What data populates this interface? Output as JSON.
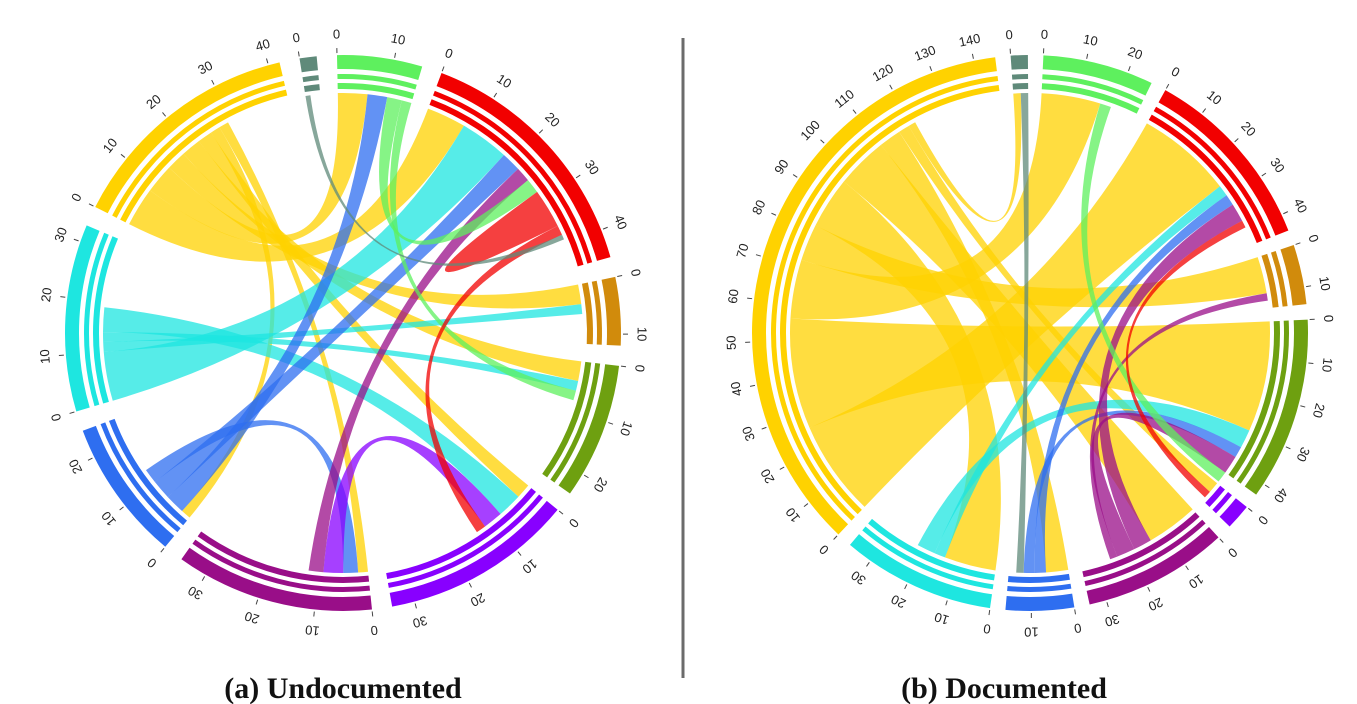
{
  "figure": {
    "panels": [
      {
        "id": "a",
        "caption": "(a) Undocumented",
        "sectors": [
          {
            "name": "gray",
            "color": "#5f8a7a",
            "max": 3,
            "ticks": [
              0
            ]
          },
          {
            "name": "green",
            "color": "#5ef05e",
            "max": 15,
            "ticks": [
              0,
              10
            ]
          },
          {
            "name": "red",
            "color": "#f20000",
            "max": 45,
            "ticks": [
              0,
              10,
              20,
              30,
              40
            ]
          },
          {
            "name": "orange",
            "color": "#d18b0c",
            "max": 12,
            "ticks": [
              0,
              10
            ]
          },
          {
            "name": "olive",
            "color": "#6ea010",
            "max": 24,
            "ticks": [
              0,
              10,
              20
            ]
          },
          {
            "name": "violet",
            "color": "#8800ff",
            "max": 34,
            "ticks": [
              0,
              10,
              20,
              30
            ]
          },
          {
            "name": "purple",
            "color": "#990e88",
            "max": 35,
            "ticks": [
              0,
              10,
              20,
              30
            ]
          },
          {
            "name": "blue",
            "color": "#2e6ef0",
            "max": 25,
            "ticks": [
              0,
              10,
              20
            ]
          },
          {
            "name": "cyan",
            "color": "#1ee6e0",
            "max": 33,
            "ticks": [
              0,
              10,
              20,
              30
            ]
          },
          {
            "name": "yellow",
            "color": "#ffd200",
            "max": 42,
            "ticks": [
              0,
              10,
              20,
              30,
              40
            ]
          }
        ],
        "chords": [
          [
            "yellow",
            "red",
            8
          ],
          [
            "yellow",
            "green",
            6
          ],
          [
            "yellow",
            "orange",
            4
          ],
          [
            "yellow",
            "olive",
            4
          ],
          [
            "yellow",
            "violet",
            3
          ],
          [
            "yellow",
            "blue",
            2
          ],
          [
            "yellow",
            "purple",
            2
          ],
          [
            "cyan",
            "red",
            10
          ],
          [
            "cyan",
            "orange",
            2
          ],
          [
            "cyan",
            "olive",
            2
          ],
          [
            "cyan",
            "violet",
            5
          ],
          [
            "blue",
            "green",
            4
          ],
          [
            "blue",
            "red",
            4
          ],
          [
            "blue",
            "purple",
            3
          ],
          [
            "violet",
            "purple",
            4
          ],
          [
            "purple",
            "red",
            3
          ],
          [
            "green",
            "red",
            3
          ],
          [
            "green",
            "olive",
            2
          ],
          [
            "red",
            "red",
            4
          ],
          [
            "red",
            "violet",
            2
          ],
          [
            "gray",
            "red",
            1
          ]
        ]
      },
      {
        "id": "b",
        "caption": "(b) Documented",
        "sectors": [
          {
            "name": "gray",
            "color": "#5f8a7a",
            "max": 4,
            "ticks": [
              0
            ]
          },
          {
            "name": "green",
            "color": "#5ef05e",
            "max": 26,
            "ticks": [
              0,
              10,
              20
            ]
          },
          {
            "name": "red",
            "color": "#f20000",
            "max": 44,
            "ticks": [
              0,
              10,
              20,
              30,
              40
            ]
          },
          {
            "name": "orange",
            "color": "#d18b0c",
            "max": 14,
            "ticks": [
              0,
              10
            ]
          },
          {
            "name": "olive",
            "color": "#6ea010",
            "max": 43,
            "ticks": [
              0,
              10,
              20,
              30,
              40
            ]
          },
          {
            "name": "violet",
            "color": "#8800ff",
            "max": 6,
            "ticks": [
              0
            ]
          },
          {
            "name": "purple",
            "color": "#990e88",
            "max": 34,
            "ticks": [
              0,
              10,
              20,
              30
            ]
          },
          {
            "name": "blue",
            "color": "#2e6ef0",
            "max": 16,
            "ticks": [
              0,
              10
            ]
          },
          {
            "name": "cyan",
            "color": "#1ee6e0",
            "max": 36,
            "ticks": [
              0,
              10,
              20,
              30
            ]
          },
          {
            "name": "yellow",
            "color": "#ffd200",
            "max": 145,
            "ticks": [
              0,
              10,
              20,
              30,
              40,
              50,
              60,
              70,
              80,
              90,
              100,
              110,
              120,
              130,
              140
            ]
          }
        ],
        "chords": [
          [
            "yellow",
            "red",
            26
          ],
          [
            "yellow",
            "olive",
            30
          ],
          [
            "yellow",
            "green",
            16
          ],
          [
            "yellow",
            "orange",
            10
          ],
          [
            "yellow",
            "cyan",
            14
          ],
          [
            "yellow",
            "purple",
            14
          ],
          [
            "yellow",
            "blue",
            6
          ],
          [
            "yellow",
            "violet",
            3
          ],
          [
            "yellow",
            "gray",
            2
          ],
          [
            "cyan",
            "red",
            3
          ],
          [
            "cyan",
            "olive",
            5
          ],
          [
            "blue",
            "red",
            3
          ],
          [
            "blue",
            "olive",
            3
          ],
          [
            "purple",
            "red",
            5
          ],
          [
            "purple",
            "olive",
            5
          ],
          [
            "purple",
            "orange",
            2
          ],
          [
            "green",
            "olive",
            3
          ],
          [
            "red",
            "violet",
            2
          ],
          [
            "gray",
            "blue",
            2
          ]
        ]
      }
    ]
  }
}
